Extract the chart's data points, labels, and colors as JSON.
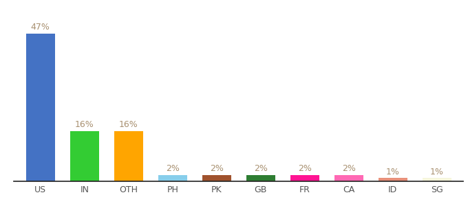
{
  "categories": [
    "US",
    "IN",
    "OTH",
    "PH",
    "PK",
    "GB",
    "FR",
    "CA",
    "ID",
    "SG"
  ],
  "values": [
    47,
    16,
    16,
    2,
    2,
    2,
    2,
    2,
    1,
    1
  ],
  "bar_colors": [
    "#4472C4",
    "#33CC33",
    "#FFA500",
    "#87CEEB",
    "#A0522D",
    "#2E7D32",
    "#FF1493",
    "#FF69B4",
    "#E8907A",
    "#F5F5DC"
  ],
  "labels": [
    "47%",
    "16%",
    "16%",
    "2%",
    "2%",
    "2%",
    "2%",
    "2%",
    "1%",
    "1%"
  ],
  "label_color": "#A89070",
  "background_color": "#ffffff",
  "ylim": [
    0,
    53
  ],
  "bar_width": 0.65,
  "label_fontsize": 9,
  "tick_fontsize": 9,
  "tick_color": "#555555"
}
